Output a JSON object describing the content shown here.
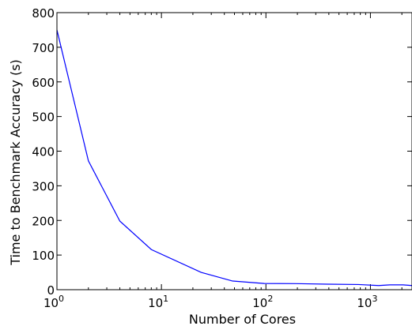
{
  "chart_data": {
    "type": "line",
    "title": "",
    "xlabel": "Number of Cores",
    "ylabel": "Time to Benchmark Accuracy (s)",
    "xscale": "log",
    "xlim": [
      1,
      2500
    ],
    "ylim": [
      0,
      800
    ],
    "grid": false,
    "legend": "none",
    "line_color": "#0000ff",
    "yticks": [
      0,
      100,
      200,
      300,
      400,
      500,
      600,
      700,
      800
    ],
    "ytick_labels": [
      "0",
      "100",
      "200",
      "300",
      "400",
      "500",
      "600",
      "700",
      "800"
    ],
    "xticks": [
      1,
      10,
      100,
      1000
    ],
    "xtick_labels": [
      {
        "base": "10",
        "exp": "0"
      },
      {
        "base": "10",
        "exp": "1"
      },
      {
        "base": "10",
        "exp": "2"
      },
      {
        "base": "10",
        "exp": "3"
      }
    ],
    "series": [
      {
        "x": [
          1,
          2,
          4,
          8,
          24,
          48,
          96,
          192,
          384,
          768,
          1200,
          1536,
          2048,
          2500
        ],
        "y": [
          750,
          372,
          198,
          116,
          50,
          25,
          18,
          17.5,
          16,
          15,
          12,
          14,
          14,
          12
        ]
      }
    ]
  }
}
